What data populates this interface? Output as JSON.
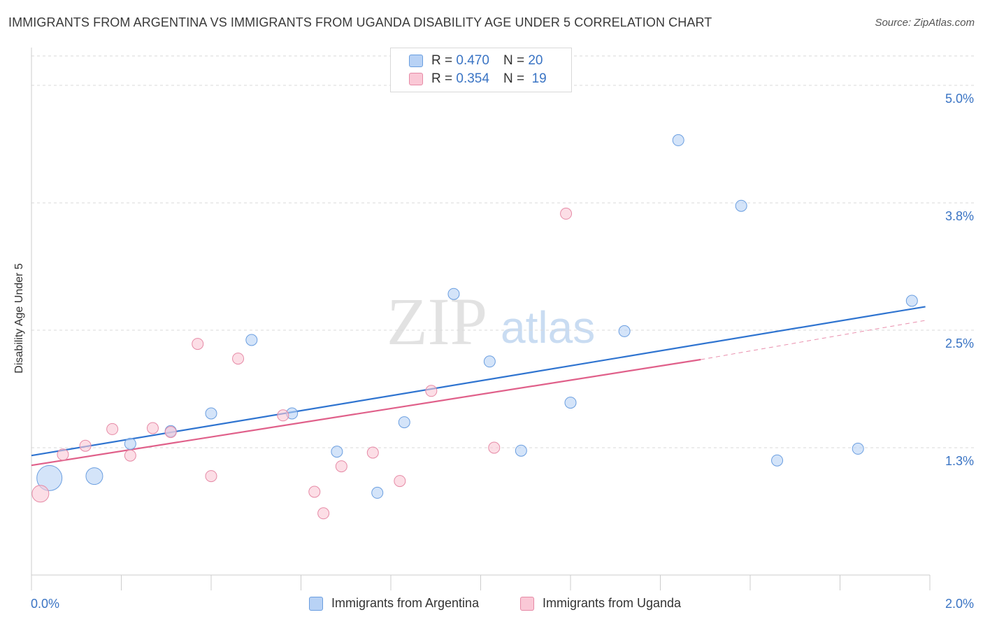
{
  "title": "IMMIGRANTS FROM ARGENTINA VS IMMIGRANTS FROM UGANDA DISABILITY AGE UNDER 5 CORRELATION CHART",
  "source": "Source: ZipAtlas.com",
  "watermark": {
    "zip": "ZIP",
    "atlas": "atlas"
  },
  "legend_top": [
    {
      "r_label": "R =",
      "r_value": "0.470",
      "n_label": "N =",
      "n_value": "20"
    },
    {
      "r_label": "R =",
      "r_value": "0.354",
      "n_label": "N =",
      "n_value": "19"
    }
  ],
  "colors": {
    "argentina_fill": "#b8d2f5",
    "argentina_stroke": "#6a9ee0",
    "argentina_line": "#2f74d0",
    "uganda_fill": "#fac8d6",
    "uganda_stroke": "#e68aa6",
    "uganda_line": "#e0608a",
    "grid": "#d9d9d9",
    "axis_text": "#3a74c4"
  },
  "chart_data": {
    "type": "scatter",
    "title": "IMMIGRANTS FROM ARGENTINA VS IMMIGRANTS FROM UGANDA DISABILITY AGE UNDER 5 CORRELATION CHART",
    "xlabel": "",
    "ylabel": "Disability Age Under 5",
    "xlim": [
      0.0,
      2.0
    ],
    "ylim": [
      0.0,
      5.3
    ],
    "x_tick_labels": [
      "0.0%",
      "2.0%"
    ],
    "y_ticks": [
      1.3,
      2.5,
      3.8,
      5.0
    ],
    "y_tick_labels": [
      "1.3%",
      "2.5%",
      "3.8%",
      "5.0%"
    ],
    "legend_position": "bottom",
    "series": [
      {
        "name": "Immigrants from Argentina",
        "color": "#6a9ee0",
        "r": 0.47,
        "n": 20,
        "trend": {
          "x": [
            0.0,
            1.99
          ],
          "y": [
            1.22,
            2.74
          ]
        },
        "points": [
          {
            "x": 0.04,
            "y": 0.99,
            "s": 3
          },
          {
            "x": 0.14,
            "y": 1.01,
            "s": 2
          },
          {
            "x": 0.22,
            "y": 1.34,
            "s": 1
          },
          {
            "x": 0.31,
            "y": 1.47,
            "s": 1
          },
          {
            "x": 0.4,
            "y": 1.65,
            "s": 1
          },
          {
            "x": 0.49,
            "y": 2.4,
            "s": 1
          },
          {
            "x": 0.58,
            "y": 1.65,
            "s": 1
          },
          {
            "x": 0.68,
            "y": 1.26,
            "s": 1
          },
          {
            "x": 0.77,
            "y": 0.84,
            "s": 1
          },
          {
            "x": 0.83,
            "y": 1.56,
            "s": 1
          },
          {
            "x": 0.94,
            "y": 2.87,
            "s": 1
          },
          {
            "x": 1.02,
            "y": 2.18,
            "s": 1
          },
          {
            "x": 1.09,
            "y": 1.27,
            "s": 1
          },
          {
            "x": 1.2,
            "y": 1.76,
            "s": 1
          },
          {
            "x": 1.32,
            "y": 2.49,
            "s": 1
          },
          {
            "x": 1.44,
            "y": 4.44,
            "s": 1
          },
          {
            "x": 1.58,
            "y": 3.77,
            "s": 1
          },
          {
            "x": 1.66,
            "y": 1.17,
            "s": 1
          },
          {
            "x": 1.84,
            "y": 1.29,
            "s": 1
          },
          {
            "x": 1.96,
            "y": 2.8,
            "s": 1
          }
        ]
      },
      {
        "name": "Immigrants from Uganda",
        "color": "#e68aa6",
        "r": 0.354,
        "n": 19,
        "trend": {
          "x": [
            0.0,
            1.49
          ],
          "y": [
            1.12,
            2.2
          ],
          "dashed_to": {
            "x": 1.99,
            "y": 2.6
          }
        },
        "points": [
          {
            "x": 0.02,
            "y": 0.83,
            "s": 2
          },
          {
            "x": 0.07,
            "y": 1.23,
            "s": 1
          },
          {
            "x": 0.12,
            "y": 1.32,
            "s": 1
          },
          {
            "x": 0.18,
            "y": 1.49,
            "s": 1
          },
          {
            "x": 0.22,
            "y": 1.22,
            "s": 1
          },
          {
            "x": 0.27,
            "y": 1.5,
            "s": 1
          },
          {
            "x": 0.31,
            "y": 1.46,
            "s": 1
          },
          {
            "x": 0.37,
            "y": 2.36,
            "s": 1
          },
          {
            "x": 0.4,
            "y": 1.01,
            "s": 1
          },
          {
            "x": 0.46,
            "y": 2.21,
            "s": 1
          },
          {
            "x": 0.56,
            "y": 1.63,
            "s": 1
          },
          {
            "x": 0.63,
            "y": 0.85,
            "s": 1
          },
          {
            "x": 0.65,
            "y": 0.63,
            "s": 1
          },
          {
            "x": 0.69,
            "y": 1.11,
            "s": 1
          },
          {
            "x": 0.76,
            "y": 1.25,
            "s": 1
          },
          {
            "x": 0.82,
            "y": 0.96,
            "s": 1
          },
          {
            "x": 0.89,
            "y": 1.88,
            "s": 1
          },
          {
            "x": 1.03,
            "y": 1.3,
            "s": 1
          },
          {
            "x": 1.19,
            "y": 3.69,
            "s": 1
          }
        ]
      }
    ]
  }
}
